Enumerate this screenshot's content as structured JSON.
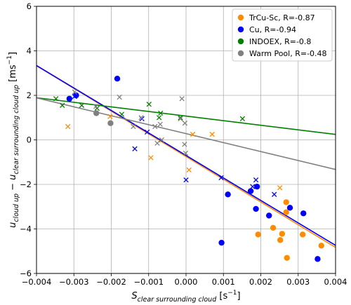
{
  "chart_data": {
    "type": "scatter",
    "title": "",
    "xlabel": {
      "main": "S",
      "sub": "clear surrounding cloud",
      "unit": " [s",
      "unit_sup": "−1",
      "unit_end": "]"
    },
    "ylabel": {
      "p1": "u",
      "p1sub": "cloud up",
      "p2": " − u",
      "p2sub": "clear surrounding cloud up",
      "unit": " [ms",
      "unit_sup": "−1",
      "unit_end": "]"
    },
    "xlim": [
      -0.004,
      0.004
    ],
    "ylim": [
      -6,
      6
    ],
    "xticks": [
      -0.004,
      -0.003,
      -0.002,
      -0.001,
      0.0,
      0.001,
      0.002,
      0.003,
      0.004
    ],
    "xtick_labels": [
      "−0.004",
      "−0.003",
      "−0.002",
      "−0.001",
      "0.000",
      "0.001",
      "0.002",
      "0.003",
      "0.004"
    ],
    "yticks": [
      -6,
      -4,
      -2,
      0,
      2,
      4,
      6
    ],
    "ytick_labels": [
      "−6",
      "−4",
      "−2",
      "0",
      "2",
      "4",
      "6"
    ],
    "grid": true,
    "legend_placement": "top-right",
    "series": [
      {
        "name": "TrCu-Sc, R=-0.87",
        "color": "#ff8c00",
        "fit": {
          "slope": -1020,
          "intercept": -0.75
        },
        "points_circle": [
          [
            0.00193,
            -4.25
          ],
          [
            0.00268,
            -2.8
          ],
          [
            0.00268,
            -3.25
          ],
          [
            0.00233,
            -3.95
          ],
          [
            0.00252,
            -4.5
          ],
          [
            0.00257,
            -4.22
          ],
          [
            0.0027,
            -5.3
          ],
          [
            0.00312,
            -4.25
          ],
          [
            0.00362,
            -4.75
          ]
        ],
        "points_x": [
          [
            -0.00316,
            0.6
          ],
          [
            -0.00203,
            1.05
          ],
          [
            -0.00094,
            -0.8
          ],
          [
            8e-05,
            -1.35
          ],
          [
            0.00018,
            0.25
          ],
          [
            0.0007,
            0.25
          ],
          [
            0.00251,
            -2.15
          ]
        ]
      },
      {
        "name": "Cu, R=-0.94",
        "color": "#0000ff",
        "fit": {
          "slope": -1010,
          "intercept": -0.7
        },
        "points_circle": [
          [
            -0.00312,
            1.85
          ],
          [
            -0.00294,
            2.0
          ],
          [
            -0.00184,
            2.75
          ],
          [
            0.00095,
            -4.62
          ],
          [
            0.00112,
            -2.45
          ],
          [
            0.00173,
            -2.3
          ],
          [
            0.00187,
            -3.1
          ],
          [
            0.0019,
            -2.1
          ],
          [
            0.00222,
            -3.4
          ],
          [
            0.00278,
            -3.05
          ],
          [
            0.00314,
            -3.3
          ],
          [
            0.00352,
            -5.35
          ]
        ],
        "points_x": [
          [
            -0.00298,
            1.95
          ],
          [
            -0.00137,
            -0.4
          ],
          [
            -0.00118,
            0.95
          ],
          [
            -0.00104,
            0.35
          ],
          [
            0.0,
            -1.8
          ],
          [
            0.00094,
            -1.7
          ],
          [
            0.00178,
            -2.1
          ],
          [
            0.00187,
            -1.8
          ],
          [
            0.00236,
            -2.45
          ]
        ]
      },
      {
        "name": "INDOEX, R=-0.8",
        "color": "#008000",
        "fit": {
          "slope": -206,
          "intercept": 1.07
        },
        "points_circle": [],
        "points_x": [
          [
            -0.00348,
            1.85
          ],
          [
            -0.00331,
            1.55
          ],
          [
            -0.00279,
            1.55
          ],
          [
            -0.00238,
            1.42
          ],
          [
            -0.00172,
            1.15
          ],
          [
            -0.00099,
            1.6
          ],
          [
            -0.00072,
            1.0
          ],
          [
            -0.00068,
            1.2
          ],
          [
            -0.00015,
            1.0
          ],
          [
            0.00151,
            0.95
          ]
        ]
      },
      {
        "name": "Warm Pool, R=-0.48",
        "color": "#808080",
        "fit": {
          "slope": -402,
          "intercept": 0.28
        },
        "points_circle": [
          [
            -0.0024,
            1.2
          ],
          [
            -0.00202,
            0.75
          ]
        ],
        "points_x": [
          [
            -0.00298,
            2.15
          ],
          [
            -0.00241,
            1.5
          ],
          [
            -0.00178,
            1.92
          ],
          [
            -0.00141,
            0.6
          ],
          [
            -0.0012,
            1.0
          ],
          [
            -0.00083,
            0.6
          ],
          [
            -0.00077,
            -0.15
          ],
          [
            -0.00069,
            0.7
          ],
          [
            -0.00065,
            0.0
          ],
          [
            -0.00015,
            0.95
          ],
          [
            -0.00011,
            1.85
          ],
          [
            -4e-05,
            -0.2
          ],
          [
            -3e-05,
            0.75
          ],
          [
            -1e-05,
            -0.6
          ]
        ]
      }
    ]
  }
}
